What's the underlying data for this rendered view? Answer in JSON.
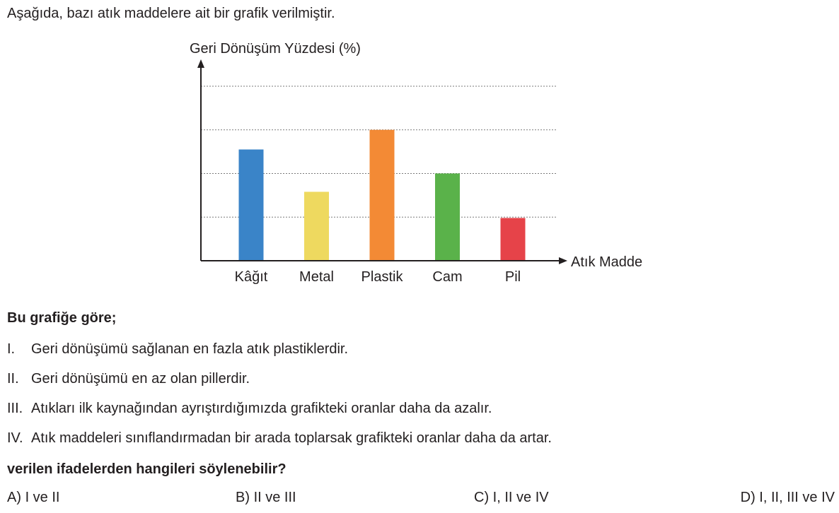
{
  "intro": "Aşağıda, bazı atık maddelere ait bir grafik verilmiştir.",
  "chart_data": {
    "type": "bar",
    "ylabel": "Geri Dönüşüm Yüzdesi (%)",
    "xlabel": "Atık Madde",
    "categories": [
      "Kâğıt",
      "Metal",
      "Plastik",
      "Cam",
      "Pil"
    ],
    "values": [
      2.55,
      1.58,
      3.0,
      2.0,
      0.98
    ],
    "colors": [
      "#3a84c8",
      "#eed95f",
      "#f38a35",
      "#5ab24a",
      "#e64349"
    ],
    "ylim": [
      0,
      4
    ],
    "gridlines": [
      1,
      2,
      3,
      4
    ],
    "grid": "dotted horizontal",
    "y_tick_labels": "none"
  },
  "question": {
    "heading": "Bu grafiğe göre;",
    "statements": [
      {
        "num": "I.",
        "text": "Geri dönüşümü sağlanan en fazla atık plastiklerdir."
      },
      {
        "num": "II.",
        "text": "Geri dönüşümü en az olan pillerdir."
      },
      {
        "num": "III.",
        "text": "Atıkları ilk kaynağından ayrıştırdığımızda grafikteki oranlar daha da azalır."
      },
      {
        "num": "IV.",
        "text": "Atık maddeleri sınıflandırmadan bir arada toplarsak grafikteki oranlar daha da artar."
      }
    ],
    "ask": "verilen ifadelerden hangileri söylenebilir?",
    "options": [
      {
        "label": "A)",
        "text": "I ve II"
      },
      {
        "label": "B)",
        "text": "II ve III"
      },
      {
        "label": "C)",
        "text": "I, II ve IV"
      },
      {
        "label": "D)",
        "text": "I, II, III ve IV"
      }
    ]
  }
}
